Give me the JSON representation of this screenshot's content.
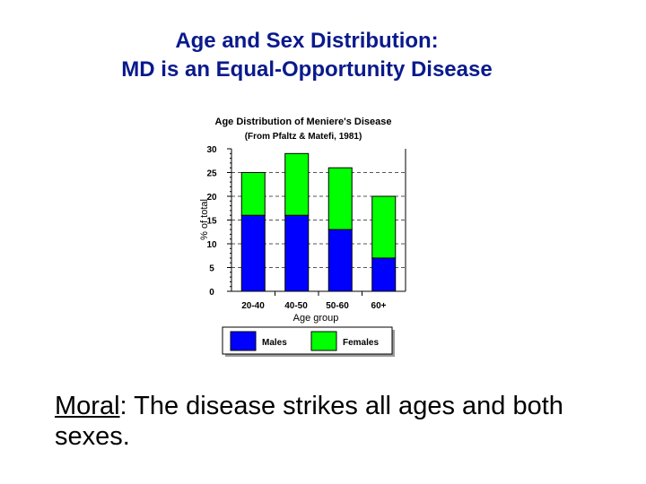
{
  "slide": {
    "title_line1": "Age and Sex Distribution:",
    "title_line2": "MD is an Equal-Opportunity Disease",
    "moral_keyword": "Moral",
    "moral_text": ": The disease strikes all ages and both sexes."
  },
  "colors": {
    "title": "#0a1a8c",
    "males": "#0000ff",
    "females": "#00ff00"
  },
  "chart_data": {
    "type": "bar",
    "stacked": true,
    "title": "Age Distribution of Meniere's Disease",
    "subtitle": "(From Pfaltz & Matefi, 1981)",
    "xlabel": "Age group",
    "ylabel": "% of total",
    "categories": [
      "20-40",
      "40-50",
      "50-60",
      "60+"
    ],
    "ylim": [
      0,
      30
    ],
    "yticks": [
      "0",
      "5",
      "10",
      "15",
      "20",
      "25",
      "30"
    ],
    "grid": "horizontal dashed",
    "legend_position": "bottom",
    "series": [
      {
        "name": "Males",
        "color": "#0000ff",
        "values": [
          16,
          16,
          13,
          7
        ]
      },
      {
        "name": "Females",
        "color": "#00ff00",
        "values": [
          9,
          13,
          13,
          13
        ]
      }
    ]
  }
}
